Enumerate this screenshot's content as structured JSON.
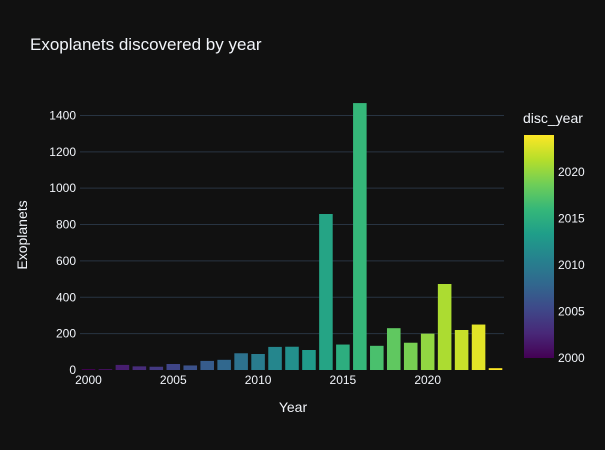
{
  "chart_data": {
    "type": "bar",
    "title": "Exoplanets discovered by year",
    "xlabel": "Year",
    "ylabel": "Exoplanets",
    "x": [
      2000,
      2001,
      2002,
      2003,
      2004,
      2005,
      2006,
      2007,
      2008,
      2009,
      2010,
      2011,
      2012,
      2013,
      2014,
      2015,
      2016,
      2017,
      2018,
      2019,
      2020,
      2021,
      2022,
      2023,
      2024
    ],
    "values": [
      5,
      5,
      28,
      20,
      18,
      33,
      25,
      50,
      56,
      92,
      88,
      127,
      128,
      110,
      858,
      140,
      1468,
      133,
      230,
      150,
      200,
      473,
      220,
      250,
      10
    ],
    "xlim": [
      1999.5,
      2024.5
    ],
    "ylim": [
      0,
      1540
    ],
    "xticks": [
      2000,
      2005,
      2010,
      2015,
      2020
    ],
    "yticks": [
      0,
      200,
      400,
      600,
      800,
      1000,
      1200,
      1400
    ],
    "grid": true,
    "colorbar": {
      "title": "disc_year",
      "range": [
        2000,
        2024
      ],
      "ticks": [
        2000,
        2005,
        2010,
        2015,
        2020
      ],
      "colorscale": "viridis",
      "colors": [
        "#440154",
        "#482878",
        "#3e4989",
        "#31688e",
        "#26828e",
        "#1f9e89",
        "#35b779",
        "#6ece58",
        "#b5de2b",
        "#fde725"
      ]
    }
  }
}
